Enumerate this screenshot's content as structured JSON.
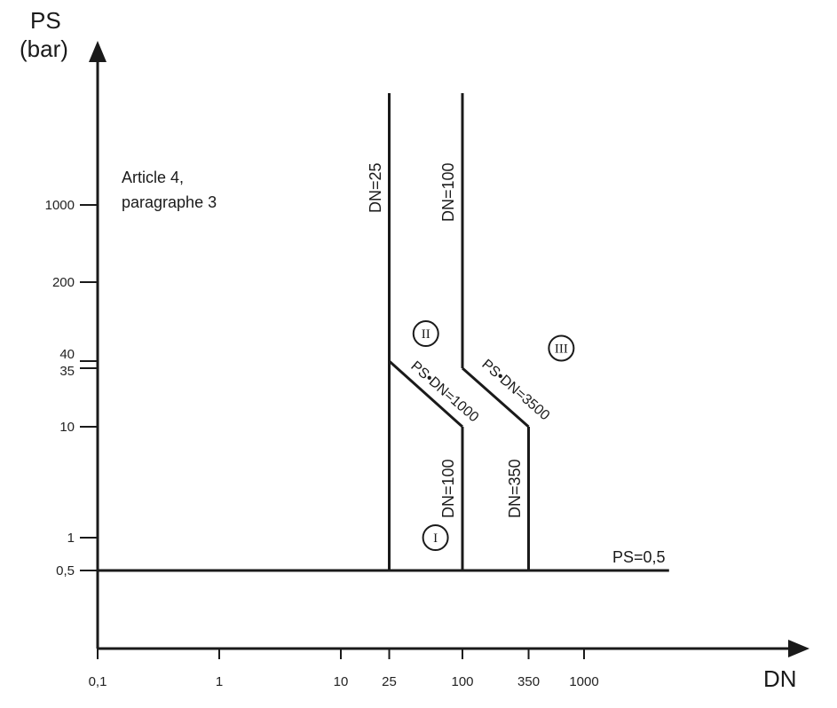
{
  "chart_data": {
    "type": "line",
    "xlabel": "DN",
    "ylabel_line1": "PS",
    "ylabel_line2": "(bar)",
    "x_scale": "log",
    "y_scale": "log (schematic)",
    "grid": false,
    "x_ticks": [
      {
        "value": 0.1,
        "label": "0,1"
      },
      {
        "value": 1,
        "label": "1"
      },
      {
        "value": 10,
        "label": "10"
      },
      {
        "value": 25,
        "label": "25"
      },
      {
        "value": 100,
        "label": "100"
      },
      {
        "value": 350,
        "label": "350"
      },
      {
        "value": 1000,
        "label": "1000"
      }
    ],
    "y_ticks": [
      {
        "value": 0.5,
        "label": "0,5"
      },
      {
        "value": 1,
        "label": "1"
      },
      {
        "value": 10,
        "label": "10"
      },
      {
        "value": 35,
        "label": "35"
      },
      {
        "value": 40,
        "label": "40"
      },
      {
        "value": 200,
        "label": "200"
      },
      {
        "value": 1000,
        "label": "1000"
      }
    ],
    "boundaries": [
      {
        "points": [
          [
            25,
            0.5
          ],
          [
            25,
            40
          ],
          [
            25,
            10000
          ]
        ]
      },
      {
        "points": [
          [
            25,
            40
          ],
          [
            100,
            10
          ]
        ]
      },
      {
        "points": [
          [
            100,
            0.5
          ],
          [
            100,
            10
          ]
        ]
      },
      {
        "points": [
          [
            100,
            10000
          ],
          [
            100,
            35
          ]
        ]
      },
      {
        "points": [
          [
            100,
            35
          ],
          [
            350,
            10
          ]
        ]
      },
      {
        "points": [
          [
            350,
            0.5
          ],
          [
            350,
            10
          ]
        ]
      },
      {
        "points": [
          [
            0.1,
            0.5
          ],
          [
            5000,
            0.5
          ]
        ]
      }
    ],
    "annotations": {
      "article_line1": "Article 4,",
      "article_line2": "paragraphe 3",
      "dn25": "DN=25",
      "dn100_top": "DN=100",
      "dn100_bottom": "DN=100",
      "dn350": "DN=350",
      "hyperbola1": "PS•DN=1000",
      "hyperbola2": "PS•DN=3500",
      "ps05": "PS=0,5"
    },
    "categories": [
      {
        "label": "I",
        "x": 60,
        "y": 1
      },
      {
        "label": "II",
        "x": 50,
        "y": 70
      },
      {
        "label": "III",
        "x": 650,
        "y": 52
      }
    ]
  }
}
